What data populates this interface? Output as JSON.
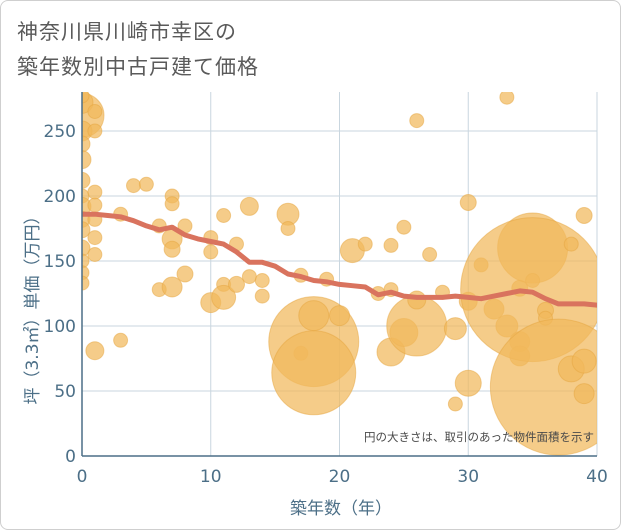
{
  "chart_data": {
    "type": "scatter",
    "title_lines": [
      "神奈川県川崎市幸区の",
      "築年数別中古戸建て価格"
    ],
    "xlabel": "築年数（年）",
    "ylabel": "坪（3.3㎡）単価（万円）",
    "xlim": [
      0,
      40
    ],
    "ylim": [
      0,
      280
    ],
    "xticks": [
      "0",
      "10",
      "20",
      "30",
      "40"
    ],
    "xtick_values": [
      0,
      10,
      20,
      30,
      40
    ],
    "yticks": [
      "0",
      "50",
      "100",
      "150",
      "200",
      "250"
    ],
    "ytick_values": [
      0,
      50,
      100,
      150,
      200,
      250
    ],
    "note": "円の大きさは、取引のあった物件面積を示す",
    "colors": {
      "bubble": "#f1b95c",
      "bubble_edge": "#e6a640",
      "trend": "#d9735e",
      "grid": "#c9d6df",
      "axis": "#4c6f87"
    },
    "bubbles": [
      {
        "x": 0,
        "y": 262,
        "s": 22
      },
      {
        "x": 0,
        "y": 272,
        "s": 11
      },
      {
        "x": 0,
        "y": 277,
        "s": 7
      },
      {
        "x": 0,
        "y": 250,
        "s": 10
      },
      {
        "x": 0,
        "y": 240,
        "s": 8
      },
      {
        "x": 0,
        "y": 228,
        "s": 9
      },
      {
        "x": 0,
        "y": 212,
        "s": 8
      },
      {
        "x": 0,
        "y": 200,
        "s": 7
      },
      {
        "x": 0,
        "y": 192,
        "s": 9
      },
      {
        "x": 0,
        "y": 182,
        "s": 8
      },
      {
        "x": 0,
        "y": 174,
        "s": 8
      },
      {
        "x": 0,
        "y": 160,
        "s": 8
      },
      {
        "x": 0,
        "y": 150,
        "s": 7
      },
      {
        "x": 0,
        "y": 141,
        "s": 7
      },
      {
        "x": 0,
        "y": 133,
        "s": 7
      },
      {
        "x": 1,
        "y": 265,
        "s": 7
      },
      {
        "x": 1,
        "y": 250,
        "s": 7
      },
      {
        "x": 1,
        "y": 203,
        "s": 7
      },
      {
        "x": 1,
        "y": 193,
        "s": 7
      },
      {
        "x": 1,
        "y": 182,
        "s": 7
      },
      {
        "x": 1,
        "y": 168,
        "s": 7
      },
      {
        "x": 1,
        "y": 155,
        "s": 7
      },
      {
        "x": 1,
        "y": 81,
        "s": 9
      },
      {
        "x": 3,
        "y": 186,
        "s": 7
      },
      {
        "x": 3,
        "y": 89,
        "s": 7
      },
      {
        "x": 4,
        "y": 208,
        "s": 7
      },
      {
        "x": 5,
        "y": 209,
        "s": 7
      },
      {
        "x": 6,
        "y": 177,
        "s": 7
      },
      {
        "x": 6,
        "y": 128,
        "s": 7
      },
      {
        "x": 7,
        "y": 200,
        "s": 7
      },
      {
        "x": 7,
        "y": 194,
        "s": 7
      },
      {
        "x": 7,
        "y": 167,
        "s": 10
      },
      {
        "x": 7,
        "y": 159,
        "s": 8
      },
      {
        "x": 7,
        "y": 130,
        "s": 10
      },
      {
        "x": 8,
        "y": 177,
        "s": 7
      },
      {
        "x": 8,
        "y": 140,
        "s": 8
      },
      {
        "x": 10,
        "y": 168,
        "s": 7
      },
      {
        "x": 10,
        "y": 157,
        "s": 7
      },
      {
        "x": 10,
        "y": 118,
        "s": 10
      },
      {
        "x": 11,
        "y": 185,
        "s": 7
      },
      {
        "x": 11,
        "y": 132,
        "s": 7
      },
      {
        "x": 11,
        "y": 122,
        "s": 12
      },
      {
        "x": 12,
        "y": 163,
        "s": 7
      },
      {
        "x": 12,
        "y": 132,
        "s": 8
      },
      {
        "x": 13,
        "y": 192,
        "s": 9
      },
      {
        "x": 13,
        "y": 138,
        "s": 7
      },
      {
        "x": 14,
        "y": 135,
        "s": 7
      },
      {
        "x": 14,
        "y": 123,
        "s": 7
      },
      {
        "x": 16,
        "y": 186,
        "s": 11
      },
      {
        "x": 16,
        "y": 175,
        "s": 7
      },
      {
        "x": 17,
        "y": 139,
        "s": 7
      },
      {
        "x": 17,
        "y": 79,
        "s": 7
      },
      {
        "x": 18,
        "y": 88,
        "s": 45
      },
      {
        "x": 18,
        "y": 64,
        "s": 42
      },
      {
        "x": 18,
        "y": 108,
        "s": 15
      },
      {
        "x": 19,
        "y": 136,
        "s": 7
      },
      {
        "x": 20,
        "y": 108,
        "s": 10
      },
      {
        "x": 21,
        "y": 158,
        "s": 12
      },
      {
        "x": 22,
        "y": 163,
        "s": 7
      },
      {
        "x": 23,
        "y": 125,
        "s": 7
      },
      {
        "x": 24,
        "y": 162,
        "s": 7
      },
      {
        "x": 24,
        "y": 128,
        "s": 7
      },
      {
        "x": 24,
        "y": 80,
        "s": 14
      },
      {
        "x": 25,
        "y": 176,
        "s": 7
      },
      {
        "x": 25,
        "y": 95,
        "s": 14
      },
      {
        "x": 26,
        "y": 258,
        "s": 7
      },
      {
        "x": 26,
        "y": 100,
        "s": 30
      },
      {
        "x": 26,
        "y": 120,
        "s": 9
      },
      {
        "x": 27,
        "y": 155,
        "s": 7
      },
      {
        "x": 28,
        "y": 126,
        "s": 7
      },
      {
        "x": 29,
        "y": 98,
        "s": 11
      },
      {
        "x": 29,
        "y": 40,
        "s": 7
      },
      {
        "x": 30,
        "y": 195,
        "s": 8
      },
      {
        "x": 30,
        "y": 119,
        "s": 9
      },
      {
        "x": 30,
        "y": 56,
        "s": 13
      },
      {
        "x": 31,
        "y": 147,
        "s": 7
      },
      {
        "x": 32,
        "y": 113,
        "s": 10
      },
      {
        "x": 33,
        "y": 276,
        "s": 7
      },
      {
        "x": 33,
        "y": 100,
        "s": 11
      },
      {
        "x": 34,
        "y": 129,
        "s": 8
      },
      {
        "x": 34,
        "y": 88,
        "s": 10
      },
      {
        "x": 34,
        "y": 77,
        "s": 10
      },
      {
        "x": 35,
        "y": 160,
        "s": 35
      },
      {
        "x": 35,
        "y": 135,
        "s": 7
      },
      {
        "x": 35,
        "y": 128,
        "s": 72
      },
      {
        "x": 36,
        "y": 112,
        "s": 8
      },
      {
        "x": 36,
        "y": 106,
        "s": 7
      },
      {
        "x": 37,
        "y": 53,
        "s": 68
      },
      {
        "x": 38,
        "y": 163,
        "s": 7
      },
      {
        "x": 38,
        "y": 67,
        "s": 13
      },
      {
        "x": 39,
        "y": 185,
        "s": 8
      },
      {
        "x": 39,
        "y": 73,
        "s": 12
      },
      {
        "x": 39,
        "y": 48,
        "s": 10
      }
    ],
    "trend": {
      "x": [
        0,
        1,
        2,
        3,
        4,
        5,
        6,
        7,
        8,
        9,
        10,
        11,
        12,
        13,
        14,
        15,
        16,
        17,
        18,
        19,
        20,
        21,
        22,
        23,
        24,
        25,
        26,
        27,
        28,
        29,
        30,
        31,
        32,
        33,
        34,
        35,
        36,
        37,
        38,
        39,
        40
      ],
      "y": [
        186,
        186,
        185,
        184,
        181,
        177,
        174,
        176,
        170,
        167,
        165,
        163,
        157,
        149,
        149,
        146,
        140,
        138,
        135,
        134,
        132,
        131,
        130,
        124,
        126,
        123,
        122,
        122,
        122,
        123,
        122,
        121,
        123,
        125,
        127,
        126,
        121,
        117,
        117,
        117,
        116
      ]
    }
  }
}
